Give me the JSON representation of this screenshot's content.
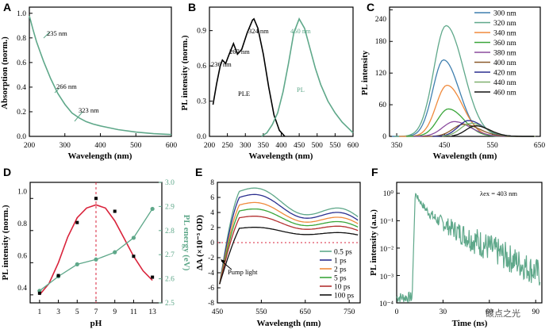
{
  "colors": {
    "green": "#5fa88a",
    "red": "#d9233b",
    "black": "#000000"
  },
  "watermark": "碳点之光",
  "chart_data": [
    {
      "id": "A",
      "type": "line",
      "panel_label": "A",
      "xlabel": "Wavelength (nm)",
      "ylabel": "Absorption (norm.)",
      "xlim": [
        200,
        600
      ],
      "ylim": [
        0,
        1.05
      ],
      "xticks": [
        "200",
        "300",
        "400",
        "500",
        "600"
      ],
      "yticks": [
        "0.0",
        "0.2",
        "0.4",
        "0.6",
        "0.8",
        "1.0"
      ],
      "series": [
        {
          "name": "absorption",
          "x": [
            200,
            210,
            220,
            230,
            240,
            260,
            280,
            300,
            320,
            340,
            360,
            380,
            400,
            450,
            500,
            550,
            600
          ],
          "y": [
            0.98,
            0.87,
            0.77,
            0.69,
            0.61,
            0.47,
            0.35,
            0.26,
            0.19,
            0.15,
            0.12,
            0.1,
            0.085,
            0.055,
            0.035,
            0.022,
            0.015
          ]
        }
      ],
      "annotations": [
        {
          "text": "235 nm",
          "x": 235,
          "y": 0.62
        },
        {
          "text": "266 nm",
          "x": 266,
          "y": 0.39
        },
        {
          "text": "323 nm",
          "x": 323,
          "y": 0.19
        }
      ]
    },
    {
      "id": "B",
      "type": "line",
      "panel_label": "B",
      "xlabel": "Wavelength (nm)",
      "ylabel": "PL intensity (norm.)",
      "xlim": [
        200,
        600
      ],
      "ylim": [
        0,
        1.1
      ],
      "xticks": [
        "200",
        "250",
        "300",
        "350",
        "400",
        "450",
        "500",
        "550",
        "600"
      ],
      "yticks": [
        "0.0",
        "0.3",
        "0.6",
        "0.9"
      ],
      "series": [
        {
          "name": "PLE",
          "x": [
            210,
            220,
            230,
            236,
            245,
            255,
            267,
            278,
            290,
            305,
            320,
            324,
            335,
            350,
            365,
            380,
            395,
            410
          ],
          "y": [
            0.27,
            0.45,
            0.6,
            0.65,
            0.62,
            0.7,
            0.79,
            0.7,
            0.74,
            0.88,
            0.99,
            1.0,
            0.92,
            0.7,
            0.42,
            0.18,
            0.05,
            0.0
          ]
        },
        {
          "name": "PL",
          "x": [
            345,
            360,
            375,
            390,
            405,
            420,
            435,
            450,
            465,
            480,
            495,
            510,
            530,
            550,
            570,
            590,
            600
          ],
          "y": [
            0.0,
            0.03,
            0.1,
            0.2,
            0.38,
            0.62,
            0.88,
            1.0,
            0.92,
            0.75,
            0.58,
            0.44,
            0.3,
            0.2,
            0.12,
            0.06,
            0.03
          ]
        }
      ],
      "annotations": [
        {
          "text": "236 nm",
          "x": 236,
          "y": 0.7
        },
        {
          "text": "267 nm",
          "x": 267,
          "y": 0.84
        },
        {
          "text": "324 nm",
          "x": 324,
          "y": 1.04
        },
        {
          "text": "450 nm",
          "x": 450,
          "y": 1.04
        },
        {
          "text": "PLE",
          "x": 312,
          "y": 0.44
        },
        {
          "text": "PL",
          "x": 408,
          "y": 0.47
        }
      ]
    },
    {
      "id": "C",
      "type": "line",
      "panel_label": "C",
      "xlabel": "Wavelength (nm)",
      "ylabel": "PL intensity",
      "xlim": [
        320,
        650
      ],
      "ylim": [
        0,
        245
      ],
      "xticks": [
        "350",
        "450",
        "550",
        "650"
      ],
      "yticks": [
        "0",
        "60",
        "120",
        "180",
        "240"
      ],
      "series": [
        {
          "name": "300 nm",
          "color": "#3f7fae",
          "peak": 448,
          "height": 145,
          "width": 40,
          "start": 340
        },
        {
          "name": "320 nm",
          "color": "#5fa88a",
          "peak": 453,
          "height": 210,
          "width": 45,
          "start": 345
        },
        {
          "name": "340 nm",
          "color": "#f08a3c",
          "peak": 455,
          "height": 97,
          "width": 40,
          "start": 355
        },
        {
          "name": "360 nm",
          "color": "#3aa63a",
          "peak": 458,
          "height": 52,
          "width": 40,
          "start": 370
        },
        {
          "name": "380 nm",
          "color": "#8b4b9e",
          "peak": 470,
          "height": 28,
          "width": 42,
          "start": 385
        },
        {
          "name": "400 nm",
          "color": "#8b5a2b",
          "peak": 490,
          "height": 23,
          "width": 40,
          "start": 405
        },
        {
          "name": "420 nm",
          "color": "#2b2f8f",
          "peak": 500,
          "height": 30,
          "width": 38,
          "start": 425
        },
        {
          "name": "440 nm",
          "color": "#7fb06f",
          "peak": 505,
          "height": 25,
          "width": 38,
          "start": 445
        },
        {
          "name": "460 nm",
          "color": "#111111",
          "peak": 515,
          "height": 20,
          "width": 36,
          "start": 465
        }
      ]
    },
    {
      "id": "D",
      "type": "scatter",
      "panel_label": "D",
      "xlabel": "pH",
      "ylabel": "PL intensity (norm.)",
      "y2label": "PL energy (eV)",
      "xlim": [
        0,
        14
      ],
      "ylim": [
        0.35,
        1.1
      ],
      "y2lim": [
        2.5,
        3.0
      ],
      "xticks": [
        "1",
        "3",
        "5",
        "7",
        "9",
        "11",
        "13"
      ],
      "yticks": [
        "0.4",
        "0.6",
        "0.8",
        "1.0"
      ],
      "y2ticks": [
        "2.5",
        "2.6",
        "2.7",
        "2.8",
        "2.9",
        "3.0"
      ],
      "series": [
        {
          "name": "PL intensity",
          "x": [
            1,
            3,
            5,
            7,
            9,
            11,
            13
          ],
          "y": [
            0.41,
            0.52,
            0.85,
            1.0,
            0.92,
            0.64,
            0.51
          ]
        },
        {
          "name": "PL intensity fit",
          "x": [
            1,
            2,
            3,
            4,
            5,
            6,
            7,
            8,
            9,
            10,
            11,
            12,
            13
          ],
          "y": [
            0.4,
            0.47,
            0.6,
            0.76,
            0.88,
            0.94,
            0.96,
            0.94,
            0.86,
            0.75,
            0.64,
            0.55,
            0.49
          ]
        },
        {
          "name": "PL energy",
          "x": [
            1,
            3,
            5,
            7,
            9,
            11,
            13
          ],
          "y": [
            2.55,
            2.61,
            2.66,
            2.68,
            2.71,
            2.77,
            2.89
          ]
        }
      ],
      "reference_line": {
        "x": 7
      }
    },
    {
      "id": "E",
      "type": "line",
      "panel_label": "E",
      "xlabel": "Wavelength (nm)",
      "ylabel": "ΔA (×10⁻³ OD)",
      "xlim": [
        450,
        775
      ],
      "ylim": [
        -8,
        8
      ],
      "xticks": [
        "450",
        "550",
        "650",
        "750"
      ],
      "yticks": [
        "-8",
        "-6",
        "-4",
        "-2",
        "0",
        "2",
        "4",
        "6",
        "8"
      ],
      "series": [
        {
          "name": "0.5 ps",
          "color": "#5fa88a",
          "peak": 6.8,
          "end": 3.0
        },
        {
          "name": "1 ps",
          "color": "#2b2f8f",
          "peak": 6.0,
          "end": 2.6
        },
        {
          "name": "2 ps",
          "color": "#f08a3c",
          "peak": 5.0,
          "end": 2.2
        },
        {
          "name": "5 ps",
          "color": "#3aa63a",
          "peak": 4.2,
          "end": 1.8
        },
        {
          "name": "10 ps",
          "color": "#b33030",
          "peak": 3.3,
          "end": 1.4
        },
        {
          "name": "100 ps",
          "color": "#111111",
          "peak": 1.9,
          "end": 0.9
        }
      ],
      "annotations": [
        {
          "text": "Pump light",
          "x": 470,
          "y": -4.2
        }
      ]
    },
    {
      "id": "F",
      "type": "line",
      "panel_label": "F",
      "xlabel": "Time (ns)",
      "ylabel": "PL intensity (a.u.)",
      "xlim": [
        0,
        94
      ],
      "ylim": [
        -4,
        0.4
      ],
      "xticks": [
        "0",
        "30",
        "60",
        "90"
      ],
      "yticks": [
        "10⁰",
        "10⁻¹",
        "10⁻²",
        "10⁻³",
        "10⁻⁴"
      ],
      "series": [
        {
          "name": "decay",
          "rise": 10,
          "peak_time": 12,
          "tau_fast": 3.5,
          "tau_slow": 15
        }
      ],
      "annotations": [
        {
          "text": "λex = 403 nm",
          "x": 58,
          "y": 0.0
        }
      ]
    }
  ]
}
